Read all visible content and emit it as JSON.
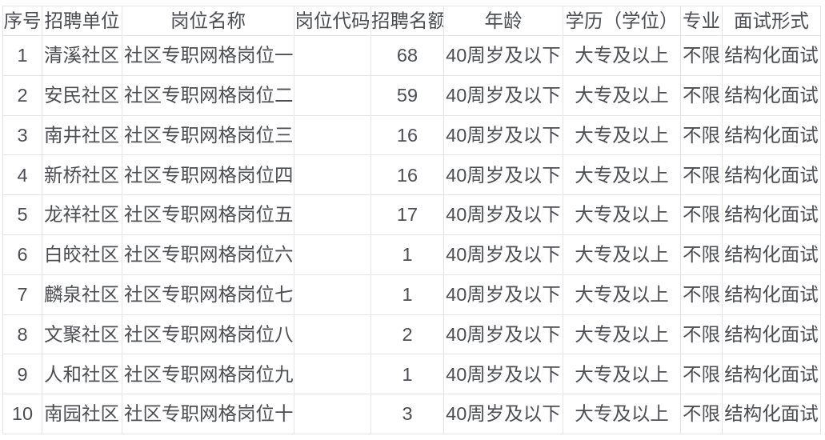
{
  "colors": {
    "text": "#4c4e52",
    "border": "#e4e4e4",
    "background": "#ffffff"
  },
  "table": {
    "columns": [
      {
        "key": "index",
        "label": "序号"
      },
      {
        "key": "employer",
        "label": "招聘单位"
      },
      {
        "key": "position-name",
        "label": "岗位名称"
      },
      {
        "key": "position-code",
        "label": "岗位代码"
      },
      {
        "key": "quota",
        "label": "招聘名额"
      },
      {
        "key": "age",
        "label": "年龄"
      },
      {
        "key": "education",
        "label": "学历（学位）"
      },
      {
        "key": "major",
        "label": "专业"
      },
      {
        "key": "interview-format",
        "label": "面试形式"
      }
    ],
    "rows": [
      [
        "1",
        "清溪社区",
        "社区专职网格岗位一",
        "",
        "68",
        "40周岁及以下",
        "大专及以上",
        "不限",
        "结构化面试"
      ],
      [
        "2",
        "安民社区",
        "社区专职网格岗位二",
        "",
        "59",
        "40周岁及以下",
        "大专及以上",
        "不限",
        "结构化面试"
      ],
      [
        "3",
        "南井社区",
        "社区专职网格岗位三",
        "",
        "16",
        "40周岁及以下",
        "大专及以上",
        "不限",
        "结构化面试"
      ],
      [
        "4",
        "新桥社区",
        "社区专职网格岗位四",
        "",
        "16",
        "40周岁及以下",
        "大专及以上",
        "不限",
        "结构化面试"
      ],
      [
        "5",
        "龙祥社区",
        "社区专职网格岗位五",
        "",
        "17",
        "40周岁及以下",
        "大专及以上",
        "不限",
        "结构化面试"
      ],
      [
        "6",
        "白皎社区",
        "社区专职网格岗位六",
        "",
        "1",
        "40周岁及以下",
        "大专及以上",
        "不限",
        "结构化面试"
      ],
      [
        "7",
        "麟泉社区",
        "社区专职网格岗位七",
        "",
        "1",
        "40周岁及以下",
        "大专及以上",
        "不限",
        "结构化面试"
      ],
      [
        "8",
        "文聚社区",
        "社区专职网格岗位八",
        "",
        "2",
        "40周岁及以下",
        "大专及以上",
        "不限",
        "结构化面试"
      ],
      [
        "9",
        "人和社区",
        "社区专职网格岗位九",
        "",
        "1",
        "40周岁及以下",
        "大专及以上",
        "不限",
        "结构化面试"
      ],
      [
        "10",
        "南园社区",
        "社区专职网格岗位十",
        "",
        "3",
        "40周岁及以下",
        "大专及以上",
        "不限",
        "结构化面试"
      ]
    ]
  }
}
